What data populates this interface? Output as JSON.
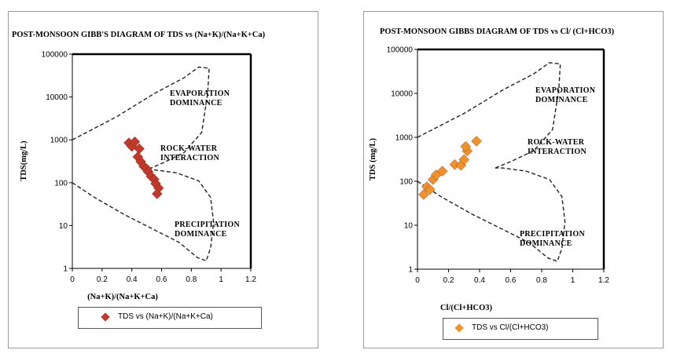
{
  "chart_data": [
    {
      "type": "scatter",
      "title": "POST-MONSOON GIBB'S DIAGRAM OF TDS vs (Na+K)/(Na+K+Ca)",
      "xlabel": "(Na+K)/(Na+K+Ca)",
      "ylabel": "TDS(mg/L)",
      "xlim": [
        0,
        1.2
      ],
      "ylim": [
        1,
        100000
      ],
      "yscale": "log",
      "xticks": [
        "0",
        "0.2",
        "0.4",
        "0.6",
        "0.8",
        "1",
        "1.2"
      ],
      "yticks": [
        "1",
        "10",
        "100",
        "1000",
        "10000",
        "100000"
      ],
      "annotations": [
        {
          "lines": [
            "EVAPORATION",
            "DOMINANCE"
          ]
        },
        {
          "lines": [
            "ROCK-WATER",
            "INTERACTION"
          ]
        },
        {
          "lines": [
            "PRECIPITATION",
            "DOMINANCE"
          ]
        }
      ],
      "series": [
        {
          "name": "TDS vs (Na+K)/(Na+K+Ca)",
          "color": "#c0392b",
          "x": [
            0.38,
            0.4,
            0.42,
            0.45,
            0.44,
            0.46,
            0.48,
            0.5,
            0.51,
            0.53,
            0.55,
            0.56,
            0.58,
            0.57
          ],
          "y": [
            850,
            700,
            900,
            620,
            400,
            310,
            240,
            210,
            180,
            140,
            120,
            95,
            75,
            55
          ]
        }
      ],
      "legend": {
        "label": "TDS vs (Na+K)/(Na+K+Ca)"
      }
    },
    {
      "type": "scatter",
      "title": "POST-MONSOON GIBBS DIAGRAM OF TDS vs Cl/ (Cl+HCO3)",
      "xlabel": "Cl/(Cl+HCO3)",
      "ylabel": "TDS (mg/L)",
      "xlim": [
        0,
        1.2
      ],
      "ylim": [
        1,
        100000
      ],
      "yscale": "log",
      "xticks": [
        "0",
        "0.2",
        "0.4",
        "0.6",
        "0.8",
        "1",
        "1.2"
      ],
      "yticks": [
        "1",
        "10",
        "100",
        "1000",
        "10000",
        "100000"
      ],
      "annotations": [
        {
          "lines": [
            "EVAPORATION",
            "DOMINANCE"
          ]
        },
        {
          "lines": [
            "ROCK-WATER",
            "INTERACTION"
          ]
        },
        {
          "lines": [
            "PRECIPITATION",
            "DOMINANCE"
          ]
        }
      ],
      "series": [
        {
          "name": "TDS vs Cl/(Cl+HCO3)",
          "color": "#f0922b",
          "x": [
            0.04,
            0.06,
            0.08,
            0.1,
            0.12,
            0.16,
            0.24,
            0.28,
            0.3,
            0.32,
            0.31,
            0.38
          ],
          "y": [
            50,
            75,
            65,
            110,
            140,
            170,
            240,
            230,
            310,
            490,
            620,
            820
          ]
        }
      ],
      "legend": {
        "label": "TDS vs Cl/(Cl+HCO3)"
      }
    }
  ]
}
